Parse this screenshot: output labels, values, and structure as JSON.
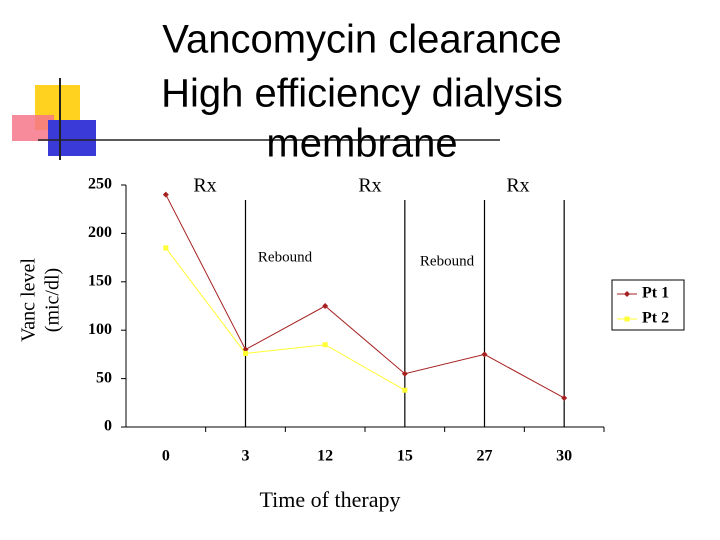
{
  "chart_data": {
    "type": "line",
    "title": [
      "Vancomycin clearance",
      "High efficiency dialysis",
      "membrane"
    ],
    "y_label": [
      "Vanc level",
      "(mic/dl)"
    ],
    "x_label": "Time of therapy",
    "categories": [
      "0",
      "3",
      "12",
      "15",
      "27",
      "30"
    ],
    "series": [
      {
        "name": "Pt 1",
        "color": "#a52020",
        "values": [
          240,
          80,
          125,
          55,
          75,
          30
        ]
      },
      {
        "name": "Pt 2",
        "color": "#ffff33",
        "values": [
          185,
          76,
          85,
          38,
          null,
          null
        ]
      }
    ],
    "ylim": [
      0,
      250
    ],
    "yticks": [
      0,
      50,
      100,
      150,
      200,
      250
    ],
    "vertical_lines": [
      "3",
      "15",
      "27",
      "30"
    ],
    "annotations": [
      "Rx",
      "Rx",
      "Rx",
      "Rebound",
      "Rebound"
    ],
    "legend": "right"
  }
}
